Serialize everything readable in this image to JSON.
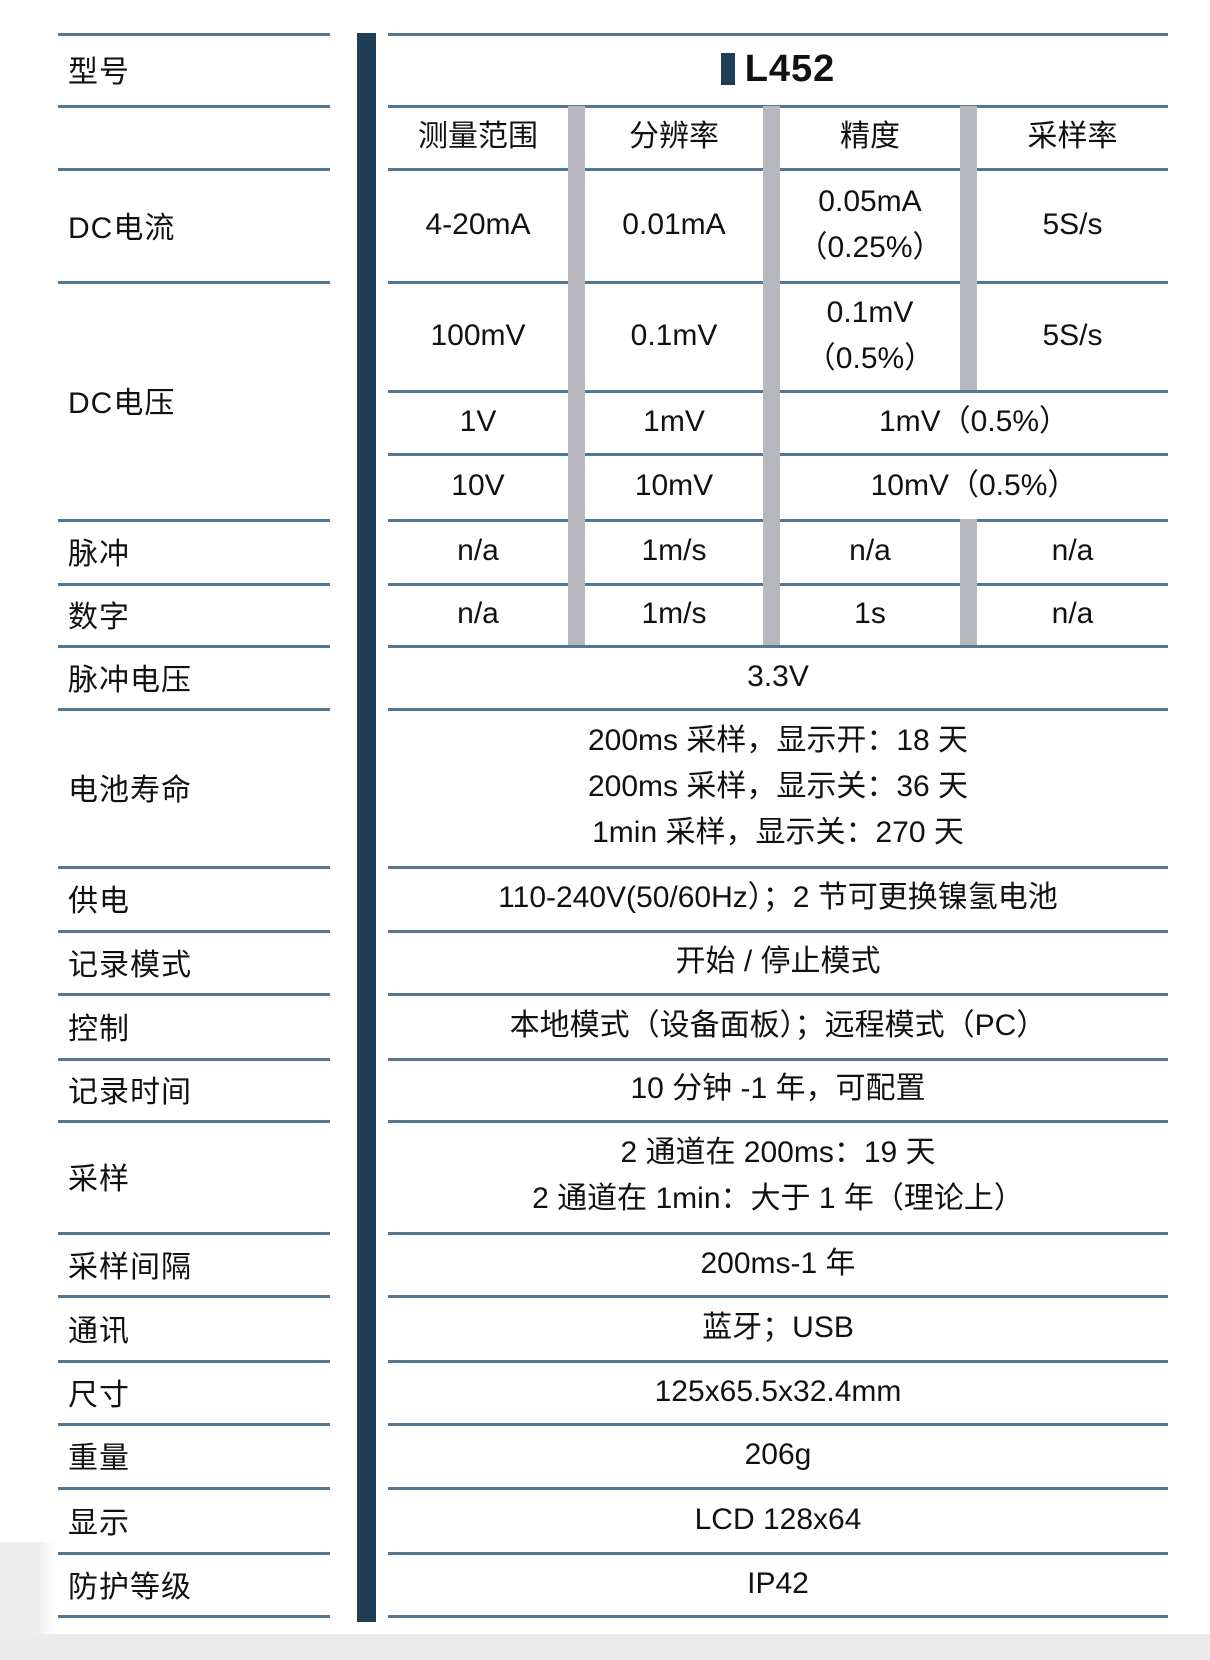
{
  "colors": {
    "accent_navy": "#1f3d55",
    "line_slate": "#56758f",
    "separator_gray": "#b7b7bf",
    "footer_gray": "#ebebeb"
  },
  "model": {
    "label": "型号",
    "value": "L452"
  },
  "headers": {
    "range": "测量范围",
    "resolution": "分辨率",
    "accuracy": "精度",
    "sample_rate": "采样率"
  },
  "dc_current": {
    "label": "DC电流",
    "range": "4-20mA",
    "resolution": "0.01mA",
    "accuracy_line1": "0.05mA",
    "accuracy_line2": "（0.25%）",
    "rate": "5S/s"
  },
  "dc_voltage": {
    "label": "DC电压",
    "row1": {
      "range": "100mV",
      "resolution": "0.1mV",
      "accuracy_line1": "0.1mV",
      "accuracy_line2": "（0.5%）",
      "rate": "5S/s"
    },
    "row2": {
      "range": "1V",
      "resolution": "1mV",
      "accuracy_rate": "1mV（0.5%）"
    },
    "row3": {
      "range": "10V",
      "resolution": "10mV",
      "accuracy_rate": "10mV（0.5%）"
    }
  },
  "pulse": {
    "label": "脉冲",
    "range": "n/a",
    "resolution": "1m/s",
    "accuracy": "n/a",
    "rate": "n/a"
  },
  "digital": {
    "label": "数字",
    "range": "n/a",
    "resolution": "1m/s",
    "accuracy": "1s",
    "rate": "n/a"
  },
  "pulse_voltage": {
    "label": "脉冲电压",
    "value": "3.3V"
  },
  "battery_life": {
    "label": "电池寿命",
    "lines": [
      "200ms 采样，显示开：18 天",
      "200ms 采样，显示关：36 天",
      "1min 采样，显示关：270 天"
    ]
  },
  "power": {
    "label": "供电",
    "value": "110-240V(50/60Hz）；2 节可更换镍氢电池"
  },
  "record_mode": {
    "label": "记录模式",
    "value": "开始 / 停止模式"
  },
  "control": {
    "label": "控制",
    "value": "本地模式（设备面板）；远程模式（PC）"
  },
  "record_time": {
    "label": "记录时间",
    "value": "10 分钟 -1 年，可配置"
  },
  "sampling": {
    "label": "采样",
    "lines": [
      "2 通道在 200ms：19 天",
      "2 通道在 1min：大于 1 年（理论上）"
    ]
  },
  "sample_interval": {
    "label": "采样间隔",
    "value": "200ms-1 年"
  },
  "communication": {
    "label": "通讯",
    "value": "蓝牙；USB"
  },
  "dimensions": {
    "label": "尺寸",
    "value": "125x65.5x32.4mm"
  },
  "weight": {
    "label": "重量",
    "value": "206g"
  },
  "display": {
    "label": "显示",
    "value": "LCD 128x64"
  },
  "protection": {
    "label": "防护等级",
    "value": "IP42"
  }
}
